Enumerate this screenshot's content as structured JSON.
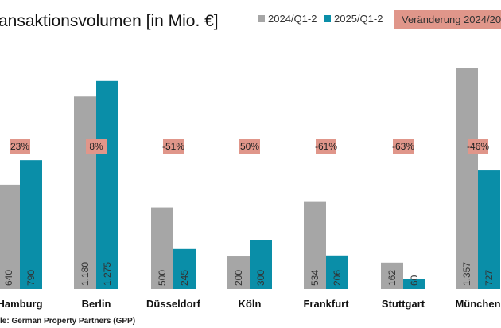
{
  "chart_data": {
    "type": "bar",
    "title": "ansaktionsvolumen [in Mio. €]",
    "categories": [
      "Hamburg",
      "Berlin",
      "Düsseldorf",
      "Köln",
      "Frankfurt",
      "Stuttgart",
      "München"
    ],
    "series": [
      {
        "name": "2024/Q1-2",
        "values": [
          640,
          1180,
          500,
          200,
          534,
          162,
          1357
        ],
        "labels": [
          "640",
          "1.180",
          "500",
          "200",
          "534",
          "162",
          "1.357"
        ],
        "color": "#a6a6a6"
      },
      {
        "name": "2025/Q1-2",
        "values": [
          790,
          1275,
          245,
          300,
          206,
          60,
          727
        ],
        "labels": [
          "790",
          "1.275",
          "245",
          "300",
          "206",
          "60",
          "727"
        ],
        "color": "#0a8ea8"
      }
    ],
    "change": {
      "name": "Veränderung 2024/20",
      "labels": [
        "23%",
        "8%",
        "-51%",
        "50%",
        "-61%",
        "-63%",
        "-46%"
      ],
      "color": "#e0968a"
    },
    "ylim": [
      0,
      1400
    ],
    "grid": false,
    "legend": "top-right",
    "source": "le: German Property Partners (GPP)"
  }
}
